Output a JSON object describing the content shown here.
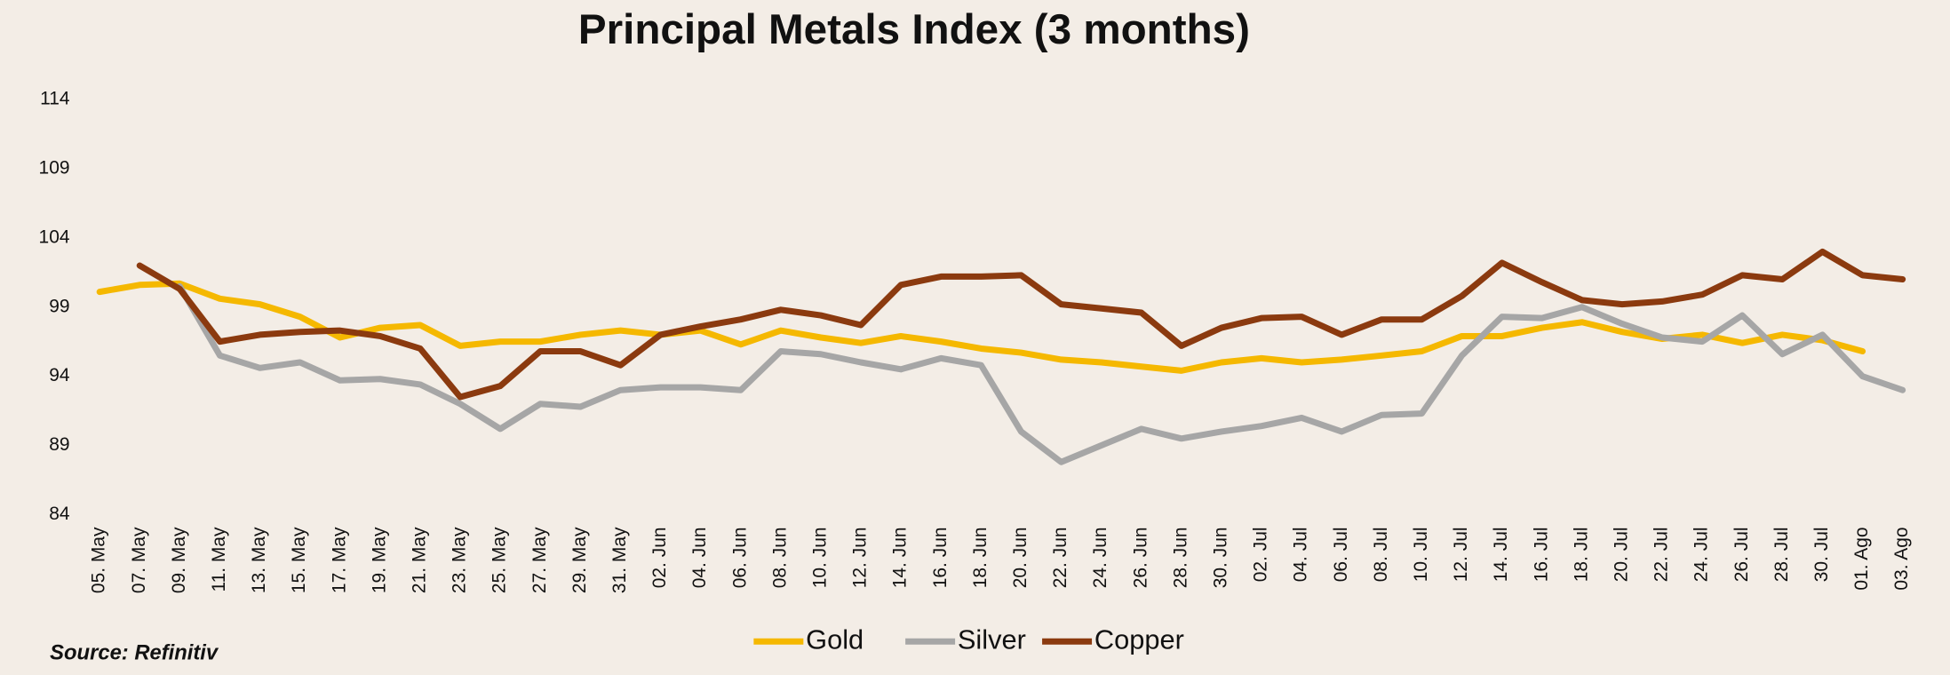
{
  "chart_data": {
    "type": "line",
    "title": "Principal Metals Index (3 months)",
    "source": "Source: Refinitiv",
    "categories": [
      "05. May",
      "07. May",
      "09. May",
      "11. May",
      "13. May",
      "15. May",
      "17. May",
      "19. May",
      "21. May",
      "23. May",
      "25. May",
      "27. May",
      "29. May",
      "31. May",
      "02. Jun",
      "04. Jun",
      "06. Jun",
      "08. Jun",
      "10. Jun",
      "12. Jun",
      "14. Jun",
      "16. Jun",
      "18. Jun",
      "20. Jun",
      "22. Jun",
      "24. Jun",
      "26. Jun",
      "28. Jun",
      "30. Jun",
      "02. Jul",
      "04. Jul",
      "06. Jul",
      "08. Jul",
      "10. Jul",
      "12. Jul",
      "14. Jul",
      "16. Jul",
      "18. Jul",
      "20. Jul",
      "22. Jul",
      "24. Jul",
      "26. Jul",
      "28. Jul",
      "30. Jul",
      "01. Ago",
      "03. Ago"
    ],
    "series": [
      {
        "name": "Gold",
        "color": "#f5b800",
        "values": [
          100.1,
          100.6,
          100.7,
          99.6,
          99.2,
          98.3,
          96.8,
          97.5,
          97.7,
          96.2,
          96.5,
          96.5,
          97.0,
          97.3,
          97.0,
          97.3,
          96.3,
          97.3,
          96.8,
          96.4,
          96.9,
          96.5,
          96.0,
          95.7,
          95.2,
          95.0,
          94.7,
          94.4,
          95.0,
          95.3,
          95.0,
          95.2,
          95.5,
          95.8,
          96.9,
          96.9,
          97.5,
          97.9,
          97.2,
          96.7,
          97.0,
          96.4,
          97.0,
          96.6,
          95.8,
          null
        ]
      },
      {
        "name": "Silver",
        "color": "#a6a6a6",
        "values": [
          null,
          null,
          100.5,
          95.5,
          94.6,
          95.0,
          93.7,
          93.8,
          93.4,
          92.0,
          90.2,
          92.0,
          91.8,
          93.0,
          93.2,
          93.2,
          93.0,
          95.8,
          95.6,
          95.0,
          94.5,
          95.3,
          94.8,
          90.0,
          87.8,
          89.0,
          90.2,
          89.5,
          90.0,
          90.4,
          91.0,
          90.0,
          91.2,
          91.3,
          95.5,
          98.3,
          98.2,
          99.0,
          97.8,
          96.8,
          96.5,
          98.4,
          95.6,
          97.0,
          94.0,
          93.0
        ]
      },
      {
        "name": "Copper",
        "color": "#8b3a0f",
        "values": [
          null,
          102.0,
          100.3,
          96.5,
          97.0,
          97.2,
          97.3,
          96.9,
          96.0,
          92.5,
          93.3,
          95.8,
          95.8,
          94.8,
          97.0,
          97.6,
          98.1,
          98.8,
          98.4,
          97.7,
          100.6,
          101.2,
          101.2,
          101.3,
          99.2,
          98.9,
          98.6,
          96.2,
          97.5,
          98.2,
          98.3,
          97.0,
          98.1,
          98.1,
          99.8,
          102.2,
          100.8,
          99.5,
          99.2,
          99.4,
          99.9,
          101.3,
          101.0,
          103.0,
          101.3,
          101.0
        ]
      }
    ],
    "ylim": [
      84,
      114
    ],
    "yticks": [
      84,
      89,
      94,
      99,
      104,
      109,
      114
    ],
    "grid": false
  }
}
